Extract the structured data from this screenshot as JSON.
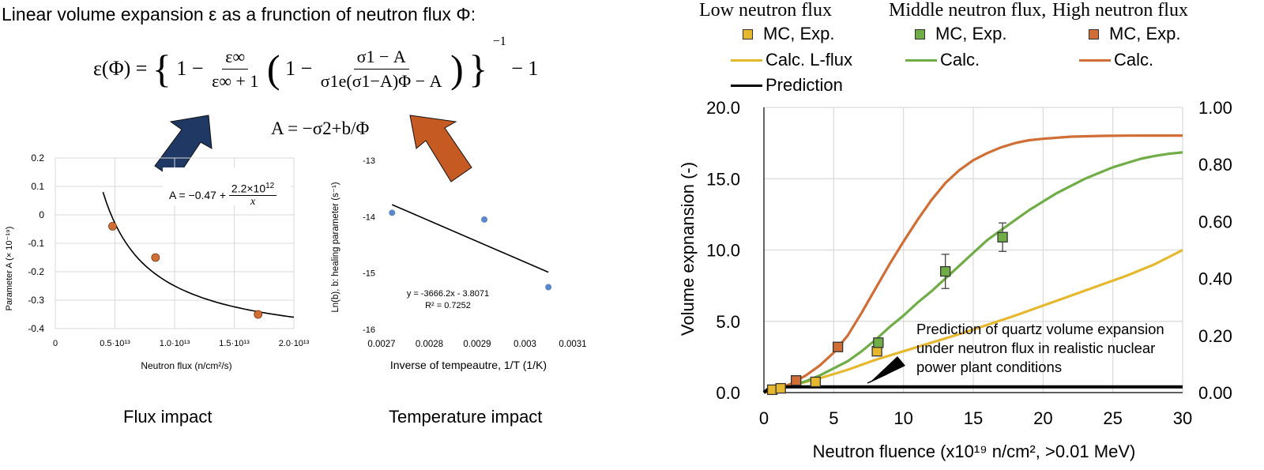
{
  "header": {
    "title": "Linear volume expansion ε as a frunction of neutron flux Φ:",
    "formula": {
      "lhs": "ε(Φ) =",
      "brace_open": "{",
      "one_a": "1 −",
      "frac1_num": "ε∞",
      "frac1_den": "ε∞ + 1",
      "paren_open": "(",
      "one_b": "1 −",
      "frac2_num": "σ1 − A",
      "frac2_den": "σ1e(σ1−A)Φ − A",
      "paren_close": ")",
      "brace_close": "}",
      "exponent": "−1",
      "tail": "− 1"
    },
    "a_definition": "A = −σ2+b/Φ"
  },
  "captions": {
    "flux": "Flux impact",
    "temperature": "Temperature impact"
  },
  "colors": {
    "low": "#E6B82E",
    "middle": "#70AD47",
    "high": "#D06E36",
    "navy_arrow": "#203864",
    "orange_arrow": "#C55A22",
    "scatter_blue": "#5B86C9"
  },
  "chart_data": [
    {
      "id": "flux-impact",
      "type": "scatter",
      "title": "",
      "xlabel": "Neutron flux (n/cm²/s)",
      "ylabel": "Parameter A (× 10⁻¹⁹)",
      "xlim": [
        0,
        20000000000000.0
      ],
      "ylim": [
        -0.4,
        0.2
      ],
      "x_tick_labels": [
        "0",
        "0.5·10¹³",
        "1.0·10¹³",
        "1.5·10¹³",
        "2.0·10¹³"
      ],
      "y_tick_labels": [
        "0.2",
        "0.1",
        "0",
        "-0.1",
        "-0.2",
        "-0.3",
        "-0.4"
      ],
      "grid": true,
      "points": [
        {
          "x": 4800000000000.0,
          "y": -0.04
        },
        {
          "x": 8400000000000.0,
          "y": -0.15
        },
        {
          "x": 17000000000000.0,
          "y": -0.35
        }
      ],
      "fit": {
        "form": "A = a + b/x",
        "a": -0.47,
        "b": 2200000000000.0,
        "x_range": [
          4000000000000.0,
          20000000000000.0
        ]
      },
      "annotation": "A = −0.47 + 2.2×10¹²/x"
    },
    {
      "id": "temperature-impact",
      "type": "scatter",
      "title": "",
      "xlabel": "Inverse of tempeautre, 1/T (1/K)",
      "ylabel": "Ln(b), b: healing parameter (s⁻¹)",
      "xlim": [
        0.0027,
        0.0031
      ],
      "ylim": [
        -16,
        -13
      ],
      "x_tick_labels": [
        "0.0027",
        "0.0028",
        "0.0029",
        "0.003",
        "0.0031"
      ],
      "y_tick_labels": [
        "-13",
        "-14",
        "-15",
        "-16"
      ],
      "grid": false,
      "points": [
        {
          "x": 0.002722,
          "y": -13.93
        },
        {
          "x": 0.002915,
          "y": -14.05
        },
        {
          "x": 0.003049,
          "y": -15.25
        }
      ],
      "fit": {
        "form": "y = m x + c",
        "m": -3666.2,
        "c": -3.8071,
        "x_range": [
          0.002722,
          0.003049
        ]
      },
      "annotation_line1": "y = -3666.2x - 3.8071",
      "annotation_line2": "R² = 0.7252"
    },
    {
      "id": "volume-expansion",
      "type": "line",
      "title": "",
      "xlabel": "Neutron fluence (x10¹⁹ n/cm², >0.01 MeV)",
      "ylabel": "Volume expnansion (-)",
      "xlim": [
        0,
        30
      ],
      "ylim": [
        0,
        20
      ],
      "y2lim": [
        0,
        1.0
      ],
      "x_tick_labels": [
        "0",
        "5",
        "10",
        "15",
        "20",
        "25",
        "30"
      ],
      "y_tick_labels": [
        "0.0",
        "5.0",
        "10.0",
        "15.0",
        "20.0"
      ],
      "y2_tick_labels": [
        "0.00",
        "0.20",
        "0.40",
        "0.60",
        "0.80",
        "1.00"
      ],
      "grid": true,
      "legend": {
        "headers": [
          "Low neutron flux",
          "Middle neutron flux,",
          "High neutron flux"
        ],
        "mc_exp": "MC, Exp.",
        "calc_low": "Calc. L-flux",
        "calc": "Calc.",
        "prediction": "Prediction"
      },
      "series": [
        {
          "name": "Calc. L-flux",
          "group": "low",
          "kind": "line",
          "x": [
            0,
            0.5,
            2,
            4,
            6,
            8,
            10,
            12,
            14,
            16,
            18,
            20,
            22,
            24,
            26,
            28,
            30
          ],
          "y": [
            0,
            0.12,
            0.5,
            1.0,
            1.6,
            2.3,
            2.9,
            3.5,
            4.1,
            4.75,
            5.4,
            6.1,
            6.8,
            7.5,
            8.2,
            9.0,
            10.0
          ]
        },
        {
          "name": "Calc.",
          "group": "middle",
          "kind": "line",
          "x": [
            0,
            1,
            2,
            3,
            4,
            5,
            6,
            7,
            8,
            9,
            10,
            11,
            12,
            13,
            14,
            15,
            16,
            17,
            18,
            19,
            20,
            21,
            22,
            23,
            24,
            25,
            26,
            27,
            28,
            29,
            30
          ],
          "y": [
            0,
            0.2,
            0.5,
            0.8,
            1.2,
            1.7,
            2.2,
            2.9,
            3.7,
            4.6,
            5.4,
            6.3,
            7.1,
            8.0,
            8.9,
            9.8,
            10.7,
            11.4,
            12.1,
            12.8,
            13.4,
            14.0,
            14.5,
            15.0,
            15.4,
            15.8,
            16.1,
            16.4,
            16.6,
            16.75,
            16.85
          ]
        },
        {
          "name": "Calc.",
          "group": "high",
          "kind": "line",
          "x": [
            0,
            1,
            2,
            3,
            4,
            5,
            6,
            7,
            8,
            9,
            10,
            11,
            12,
            13,
            14,
            15,
            16,
            17,
            18,
            19,
            20,
            22,
            24,
            26,
            28,
            30
          ],
          "y": [
            0,
            0.25,
            0.65,
            1.2,
            1.9,
            2.8,
            4.0,
            5.6,
            7.3,
            9.0,
            10.6,
            12.1,
            13.5,
            14.7,
            15.6,
            16.3,
            16.8,
            17.2,
            17.5,
            17.7,
            17.8,
            17.95,
            18.0,
            18.02,
            18.03,
            18.03
          ]
        },
        {
          "name": "Prediction",
          "group": "prediction",
          "kind": "line",
          "x": [
            0,
            0.3,
            0.8,
            1.5,
            30
          ],
          "y": [
            0,
            0.25,
            0.38,
            0.4,
            0.4
          ]
        },
        {
          "name": "MC, Exp.",
          "group": "low",
          "kind": "marker",
          "points": [
            [
              0.6,
              0.2
            ],
            [
              1.2,
              0.3
            ],
            [
              3.7,
              0.75
            ],
            [
              8.1,
              2.9
            ]
          ]
        },
        {
          "name": "MC, Exp.",
          "group": "middle",
          "kind": "marker",
          "points": [
            [
              8.2,
              3.5
            ],
            [
              13.0,
              8.5
            ],
            [
              17.1,
              10.9
            ]
          ],
          "errors": [
            0,
            1.2,
            1.0
          ]
        },
        {
          "name": "MC, Exp.",
          "group": "high",
          "kind": "marker",
          "points": [
            [
              2.3,
              0.85
            ],
            [
              5.3,
              3.2
            ]
          ]
        }
      ],
      "annotation": [
        "Prediction of quartz volume expansion",
        "under neutron flux in realistic nuclear",
        "power plant conditions"
      ]
    }
  ]
}
